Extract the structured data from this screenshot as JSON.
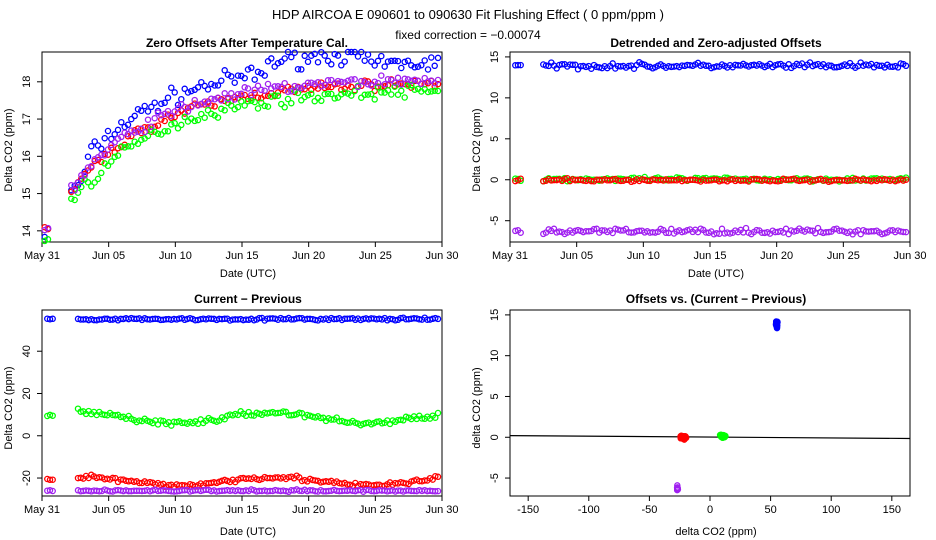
{
  "header": {
    "title": "HDP   AIRCOA E   090601 to 090630   Fit Flushing Effect ( 0 ppm/ppm )",
    "subtitle": "fixed correction = −0.00074"
  },
  "colors": {
    "blue": "#0000ff",
    "red": "#ff0000",
    "green": "#00ff00",
    "purple": "#a020f0",
    "black": "#000000"
  },
  "chart_data": [
    {
      "id": "p1",
      "type": "scatter",
      "title": "Zero Offsets After Temperature Cal.",
      "xlabel": "Date (UTC)",
      "ylabel": "Delta CO2 (ppm)",
      "xlim": [
        0.8,
        30.8
      ],
      "ylim": [
        13.7,
        18.8
      ],
      "x_ticks": [
        {
          "v": 0.8,
          "label": "May 31"
        },
        {
          "v": 5.8,
          "label": "Jun 05"
        },
        {
          "v": 10.8,
          "label": "Jun 10"
        },
        {
          "v": 15.8,
          "label": "Jun 15"
        },
        {
          "v": 20.8,
          "label": "Jun 20"
        },
        {
          "v": 25.8,
          "label": "Jun 25"
        },
        {
          "v": 30.8,
          "label": "Jun 30"
        }
      ],
      "y_ticks": [
        {
          "v": 14,
          "label": "14"
        },
        {
          "v": 15,
          "label": "15"
        },
        {
          "v": 16,
          "label": "16"
        },
        {
          "v": 17,
          "label": "17"
        },
        {
          "v": 18,
          "label": "18"
        }
      ],
      "series": [
        {
          "name": "blue",
          "color": "blue",
          "kind": "curve",
          "start": [
            1.0,
            1.4
          ],
          "gap": [
            1.5,
            3.0
          ],
          "main": [
            3.0,
            30.6
          ],
          "step": 0.25,
          "v0": 13.9,
          "v1": 18.1,
          "tau": 6.5,
          "offset": 0.45,
          "jitter": 0.2,
          "hump": [
            17.5,
            25.0,
            0.3
          ]
        },
        {
          "name": "red",
          "color": "red",
          "kind": "curve",
          "start": [
            1.0,
            1.4
          ],
          "gap": [
            1.5,
            3.0
          ],
          "main": [
            3.0,
            30.6
          ],
          "step": 0.25,
          "v0": 14.0,
          "v1": 18.0,
          "tau": 6.5,
          "offset": 0.0,
          "jitter": 0.12
        },
        {
          "name": "green",
          "color": "green",
          "kind": "curve",
          "start": [
            1.0,
            1.4
          ],
          "gap": [
            1.5,
            3.0
          ],
          "main": [
            3.0,
            30.6
          ],
          "step": 0.25,
          "v0": 13.7,
          "v1": 17.9,
          "tau": 6.5,
          "offset": -0.1,
          "jitter": 0.15
        },
        {
          "name": "purple",
          "color": "purple",
          "kind": "curve",
          "start": [
            1.0,
            1.4
          ],
          "gap": [
            1.5,
            3.0
          ],
          "main": [
            3.0,
            30.6
          ],
          "step": 0.25,
          "v0": 14.05,
          "v1": 18.05,
          "tau": 6.5,
          "offset": 0.05,
          "jitter": 0.14
        }
      ]
    },
    {
      "id": "p2",
      "type": "scatter",
      "title": "Detrended and Zero-adjusted Offsets",
      "xlabel": "Date (UTC)",
      "ylabel": "Delta CO2 (ppm)",
      "xlim": [
        0.8,
        30.8
      ],
      "ylim": [
        -7.6,
        15.6
      ],
      "x_ticks": [
        {
          "v": 0.8,
          "label": "May 31"
        },
        {
          "v": 5.8,
          "label": "Jun 05"
        },
        {
          "v": 10.8,
          "label": "Jun 10"
        },
        {
          "v": 15.8,
          "label": "Jun 15"
        },
        {
          "v": 20.8,
          "label": "Jun 20"
        },
        {
          "v": 25.8,
          "label": "Jun 25"
        },
        {
          "v": 30.8,
          "label": "Jun 30"
        }
      ],
      "y_ticks": [
        {
          "v": -5,
          "label": "-5"
        },
        {
          "v": 0,
          "label": "0"
        },
        {
          "v": 5,
          "label": "5"
        },
        {
          "v": 10,
          "label": "10"
        },
        {
          "v": 15,
          "label": "15"
        }
      ],
      "series": [
        {
          "name": "blue",
          "color": "blue",
          "kind": "flat",
          "start": [
            1.2,
            1.6
          ],
          "gap": [
            1.7,
            3.3
          ],
          "main": [
            3.3,
            30.6
          ],
          "step": 0.2,
          "level": 13.9,
          "jitter": 0.3
        },
        {
          "name": "purple",
          "color": "purple",
          "kind": "flat",
          "start": [
            1.2,
            1.6
          ],
          "gap": [
            1.7,
            3.3
          ],
          "main": [
            3.3,
            30.6
          ],
          "step": 0.2,
          "level": -6.3,
          "jitter": 0.3
        },
        {
          "name": "green",
          "color": "green",
          "kind": "flat",
          "start": [
            1.2,
            1.6
          ],
          "gap": [
            1.7,
            3.3
          ],
          "main": [
            3.3,
            30.6
          ],
          "step": 0.2,
          "level": 0.05,
          "jitter": 0.2
        },
        {
          "name": "red",
          "color": "red",
          "kind": "flat",
          "start": [
            1.2,
            1.6
          ],
          "gap": [
            1.7,
            3.3
          ],
          "main": [
            3.3,
            30.6
          ],
          "step": 0.2,
          "level": -0.05,
          "jitter": 0.15
        }
      ]
    },
    {
      "id": "p3",
      "type": "scatter",
      "title": "Current − Previous",
      "xlabel": "Date (UTC)",
      "ylabel": "Delta CO2 (ppm)",
      "xlim": [
        0.8,
        30.8
      ],
      "ylim": [
        -28.5,
        59.5
      ],
      "x_ticks": [
        {
          "v": 0.8,
          "label": "May 31"
        },
        {
          "v": 5.8,
          "label": "Jun 05"
        },
        {
          "v": 10.8,
          "label": "Jun 10"
        },
        {
          "v": 15.8,
          "label": "Jun 15"
        },
        {
          "v": 20.8,
          "label": "Jun 20"
        },
        {
          "v": 25.8,
          "label": "Jun 25"
        },
        {
          "v": 30.8,
          "label": "Jun 30"
        }
      ],
      "y_ticks": [
        {
          "v": -20,
          "label": "-20"
        },
        {
          "v": 0,
          "label": "0"
        },
        {
          "v": 20,
          "label": "20"
        },
        {
          "v": 40,
          "label": "40"
        }
      ],
      "series": [
        {
          "name": "blue",
          "color": "blue",
          "kind": "flat",
          "start": [
            1.2,
            1.6
          ],
          "gap": [
            1.7,
            3.5
          ],
          "main": [
            3.5,
            30.6
          ],
          "step": 0.2,
          "level": 55.2,
          "jitter": 0.5
        },
        {
          "name": "green",
          "color": "green",
          "kind": "wave",
          "start": [
            1.2,
            1.6
          ],
          "gap": [
            1.7,
            3.5
          ],
          "main": [
            3.5,
            30.6
          ],
          "step": 0.2,
          "level": 8.5,
          "amp": 2.5,
          "jitter": 1.2
        },
        {
          "name": "red",
          "color": "red",
          "kind": "wave",
          "start": [
            1.2,
            1.6
          ],
          "gap": [
            1.7,
            3.5
          ],
          "main": [
            3.5,
            30.6
          ],
          "step": 0.2,
          "level": -21.5,
          "amp": 2.0,
          "jitter": 1.0
        },
        {
          "name": "purple",
          "color": "purple",
          "kind": "flat",
          "start": [
            1.2,
            1.6
          ],
          "gap": [
            1.7,
            3.5
          ],
          "main": [
            3.5,
            30.6
          ],
          "step": 0.2,
          "level": -26.0,
          "jitter": 0.4
        }
      ]
    },
    {
      "id": "p4",
      "type": "scatter",
      "title": "Offsets vs. (Current − Previous)",
      "xlabel": "delta CO2 (ppm)",
      "ylabel": "delta CO2 (ppm)",
      "xlim": [
        -165,
        165
      ],
      "ylim": [
        -7.2,
        15.6
      ],
      "x_ticks": [
        {
          "v": -150,
          "label": "-150"
        },
        {
          "v": -100,
          "label": "-100"
        },
        {
          "v": -50,
          "label": "-50"
        },
        {
          "v": 0,
          "label": "0"
        },
        {
          "v": 50,
          "label": "50"
        },
        {
          "v": 100,
          "label": "100"
        },
        {
          "v": 150,
          "label": "150"
        }
      ],
      "y_ticks": [
        {
          "v": -5,
          "label": "-5"
        },
        {
          "v": 0,
          "label": "0"
        },
        {
          "v": 5,
          "label": "5"
        },
        {
          "v": 10,
          "label": "10"
        },
        {
          "v": 15,
          "label": "15"
        }
      ],
      "fit_line": {
        "x": [
          -165,
          165
        ],
        "y": [
          0.2,
          -0.15
        ],
        "color": "black"
      },
      "clusters": [
        {
          "name": "blue",
          "color": "blue",
          "cx": 55,
          "cy": 13.9,
          "sx": 0.6,
          "sy": 0.35,
          "n": 28
        },
        {
          "name": "red",
          "color": "red",
          "cx": -22,
          "cy": 0.0,
          "sx": 1.8,
          "sy": 0.18,
          "n": 36
        },
        {
          "name": "green",
          "color": "green",
          "cx": 10,
          "cy": 0.1,
          "sx": 2.0,
          "sy": 0.15,
          "n": 36
        },
        {
          "name": "purple",
          "color": "purple",
          "cx": -27,
          "cy": -6.2,
          "sx": 0.4,
          "sy": 0.3,
          "n": 8
        }
      ]
    }
  ]
}
